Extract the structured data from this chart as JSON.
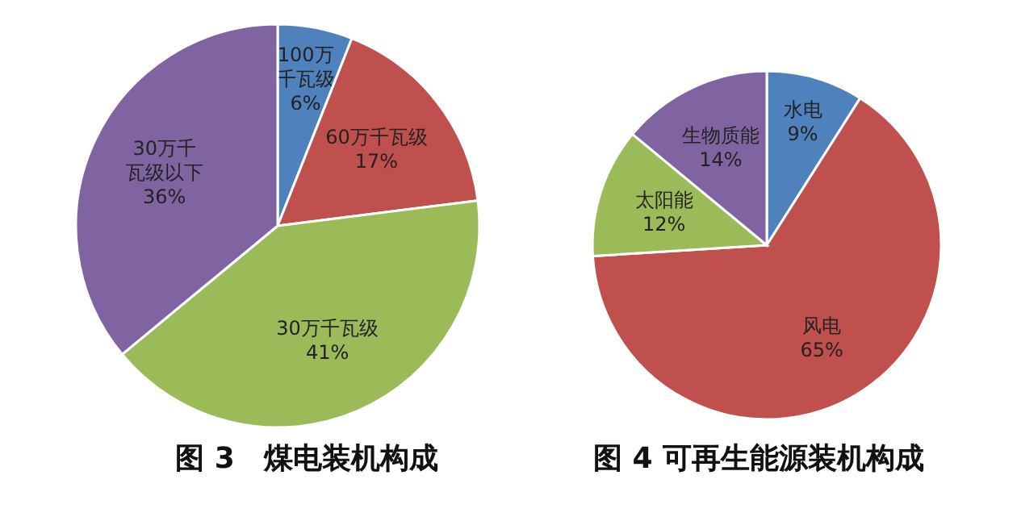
{
  "chart_data": [
    {
      "type": "pie",
      "title": "图 3　煤电装机构成",
      "categories": [
        "100万千瓦级",
        "60万千瓦级",
        "30万千瓦级",
        "30万千瓦级以下"
      ],
      "values": [
        6,
        17,
        41,
        36
      ],
      "value_labels": [
        "6%",
        "17%",
        "41%",
        "36%"
      ],
      "colors": [
        "#4f81bd",
        "#c0504d",
        "#9bbb59",
        "#8064a2"
      ]
    },
    {
      "type": "pie",
      "title": "图 4 可再生能源装机构成",
      "categories": [
        "水电",
        "风电",
        "太阳能",
        "生物质能"
      ],
      "values": [
        9,
        65,
        12,
        14
      ],
      "value_labels": [
        "9%",
        "65%",
        "12%",
        "14%"
      ],
      "colors": [
        "#4f81bd",
        "#c0504d",
        "#9bbb59",
        "#8064a2"
      ]
    }
  ]
}
